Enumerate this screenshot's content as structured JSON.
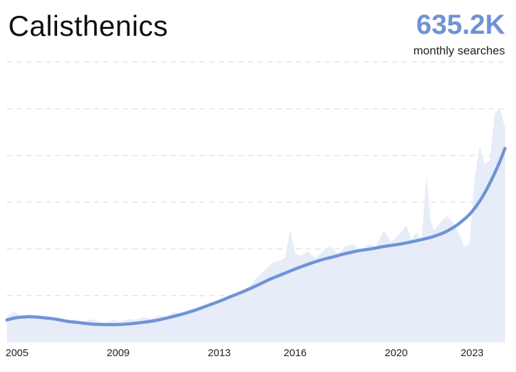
{
  "header": {
    "title": "Calisthenics",
    "metric_value": "635.2K",
    "metric_label": "monthly searches"
  },
  "colors": {
    "trend_line": "#6f93d6",
    "area_fill": "#e6ecf8",
    "grid": "#e4e4e4",
    "metric": "#6f93d6"
  },
  "chart_data": {
    "type": "area",
    "title": "Calisthenics",
    "xlabel": "",
    "ylabel": "",
    "grid": true,
    "y_labels_shown": false,
    "xlim": [
      2004.6,
      2024.3
    ],
    "ylim": [
      0,
      6
    ],
    "x_ticks": [
      2005,
      2009,
      2013,
      2016,
      2020,
      2023
    ],
    "series": [
      {
        "style": "area",
        "points": [
          [
            2004.6,
            0.55
          ],
          [
            2004.9,
            0.65
          ],
          [
            2005.2,
            0.55
          ],
          [
            2005.5,
            0.6
          ],
          [
            2005.8,
            0.5
          ],
          [
            2006.1,
            0.55
          ],
          [
            2006.4,
            0.48
          ],
          [
            2006.7,
            0.5
          ],
          [
            2007.0,
            0.45
          ],
          [
            2007.3,
            0.5
          ],
          [
            2007.6,
            0.42
          ],
          [
            2007.9,
            0.5
          ],
          [
            2008.2,
            0.45
          ],
          [
            2008.5,
            0.42
          ],
          [
            2008.8,
            0.48
          ],
          [
            2009.1,
            0.45
          ],
          [
            2009.4,
            0.5
          ],
          [
            2009.7,
            0.48
          ],
          [
            2010.0,
            0.55
          ],
          [
            2010.3,
            0.5
          ],
          [
            2010.6,
            0.58
          ],
          [
            2010.9,
            0.55
          ],
          [
            2011.2,
            0.65
          ],
          [
            2011.5,
            0.62
          ],
          [
            2011.8,
            0.7
          ],
          [
            2012.1,
            0.75
          ],
          [
            2012.4,
            0.8
          ],
          [
            2012.7,
            0.82
          ],
          [
            2013.0,
            0.9
          ],
          [
            2013.3,
            0.95
          ],
          [
            2013.6,
            1.05
          ],
          [
            2013.9,
            1.1
          ],
          [
            2014.2,
            1.2
          ],
          [
            2014.5,
            1.4
          ],
          [
            2014.8,
            1.55
          ],
          [
            2015.1,
            1.7
          ],
          [
            2015.4,
            1.75
          ],
          [
            2015.6,
            1.8
          ],
          [
            2015.8,
            2.4
          ],
          [
            2016.0,
            1.9
          ],
          [
            2016.2,
            1.85
          ],
          [
            2016.5,
            1.95
          ],
          [
            2016.8,
            1.8
          ],
          [
            2017.1,
            1.95
          ],
          [
            2017.4,
            2.05
          ],
          [
            2017.7,
            1.9
          ],
          [
            2018.0,
            2.05
          ],
          [
            2018.3,
            2.1
          ],
          [
            2018.6,
            1.95
          ],
          [
            2018.9,
            2.1
          ],
          [
            2019.2,
            2.05
          ],
          [
            2019.5,
            2.4
          ],
          [
            2019.8,
            2.15
          ],
          [
            2020.1,
            2.3
          ],
          [
            2020.4,
            2.5
          ],
          [
            2020.6,
            2.2
          ],
          [
            2020.8,
            2.35
          ],
          [
            2021.0,
            2.2
          ],
          [
            2021.2,
            3.6
          ],
          [
            2021.35,
            2.6
          ],
          [
            2021.5,
            2.4
          ],
          [
            2021.8,
            2.6
          ],
          [
            2022.0,
            2.7
          ],
          [
            2022.2,
            2.6
          ],
          [
            2022.5,
            2.3
          ],
          [
            2022.7,
            2.05
          ],
          [
            2022.9,
            2.1
          ],
          [
            2023.1,
            3.5
          ],
          [
            2023.3,
            4.2
          ],
          [
            2023.5,
            3.8
          ],
          [
            2023.7,
            3.9
          ],
          [
            2023.9,
            4.9
          ],
          [
            2024.1,
            5.0
          ],
          [
            2024.3,
            4.6
          ]
        ]
      },
      {
        "style": "line",
        "points": [
          [
            2004.6,
            0.48
          ],
          [
            2005.0,
            0.53
          ],
          [
            2005.5,
            0.55
          ],
          [
            2006.0,
            0.53
          ],
          [
            2006.5,
            0.5
          ],
          [
            2007.0,
            0.45
          ],
          [
            2007.5,
            0.42
          ],
          [
            2008.0,
            0.39
          ],
          [
            2008.5,
            0.38
          ],
          [
            2009.0,
            0.38
          ],
          [
            2009.5,
            0.4
          ],
          [
            2010.0,
            0.43
          ],
          [
            2010.5,
            0.47
          ],
          [
            2011.0,
            0.53
          ],
          [
            2011.5,
            0.6
          ],
          [
            2012.0,
            0.68
          ],
          [
            2012.5,
            0.78
          ],
          [
            2013.0,
            0.88
          ],
          [
            2013.5,
            0.99
          ],
          [
            2014.0,
            1.1
          ],
          [
            2014.5,
            1.22
          ],
          [
            2015.0,
            1.35
          ],
          [
            2015.5,
            1.46
          ],
          [
            2016.0,
            1.57
          ],
          [
            2016.5,
            1.67
          ],
          [
            2017.0,
            1.76
          ],
          [
            2017.5,
            1.83
          ],
          [
            2018.0,
            1.9
          ],
          [
            2018.5,
            1.96
          ],
          [
            2019.0,
            2.0
          ],
          [
            2019.5,
            2.05
          ],
          [
            2020.0,
            2.09
          ],
          [
            2020.5,
            2.14
          ],
          [
            2021.0,
            2.2
          ],
          [
            2021.5,
            2.27
          ],
          [
            2022.0,
            2.38
          ],
          [
            2022.5,
            2.55
          ],
          [
            2023.0,
            2.8
          ],
          [
            2023.5,
            3.2
          ],
          [
            2024.0,
            3.75
          ],
          [
            2024.3,
            4.15
          ]
        ]
      }
    ]
  }
}
